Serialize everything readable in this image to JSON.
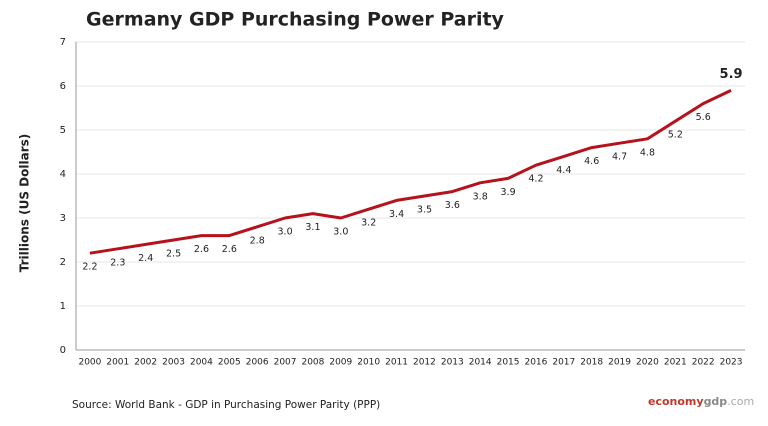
{
  "chart_data": {
    "type": "line",
    "title": "Germany GDP Purchasing Power Parity",
    "y_label": "Trillions (US Dollars)",
    "categories": [
      "2000",
      "2001",
      "2002",
      "2003",
      "2004",
      "2005",
      "2006",
      "2007",
      "2008",
      "2009",
      "2010",
      "2011",
      "2012",
      "2013",
      "2014",
      "2015",
      "2016",
      "2017",
      "2018",
      "2019",
      "2020",
      "2021",
      "2022",
      "2023"
    ],
    "values": [
      2.2,
      2.3,
      2.4,
      2.5,
      2.6,
      2.6,
      2.8,
      3.0,
      3.1,
      3.0,
      3.2,
      3.4,
      3.5,
      3.6,
      3.8,
      3.9,
      4.2,
      4.4,
      4.6,
      4.7,
      4.8,
      5.2,
      5.6,
      5.9
    ],
    "value_labels": [
      "2.2",
      "2.3",
      "2.4",
      "2.5",
      "2.6",
      "2.6",
      "2.8",
      "3.0",
      "3.1",
      "3.0",
      "3.2",
      "3.4",
      "3.5",
      "3.6",
      "3.8",
      "3.9",
      "4.2",
      "4.4",
      "4.6",
      "4.7",
      "4.8",
      "5.2",
      "5.6",
      "5.9"
    ],
    "color": "#b5121b",
    "ylim": [
      0,
      7
    ],
    "yticks": [
      0,
      1,
      2,
      3,
      4,
      5,
      6,
      7
    ],
    "grid": true,
    "source": "Source:  World Bank -  GDP  in Purchasing Power Parity (PPP)",
    "watermark": {
      "part1": "economy",
      "part2": "gdp",
      "part3": ".com"
    }
  }
}
